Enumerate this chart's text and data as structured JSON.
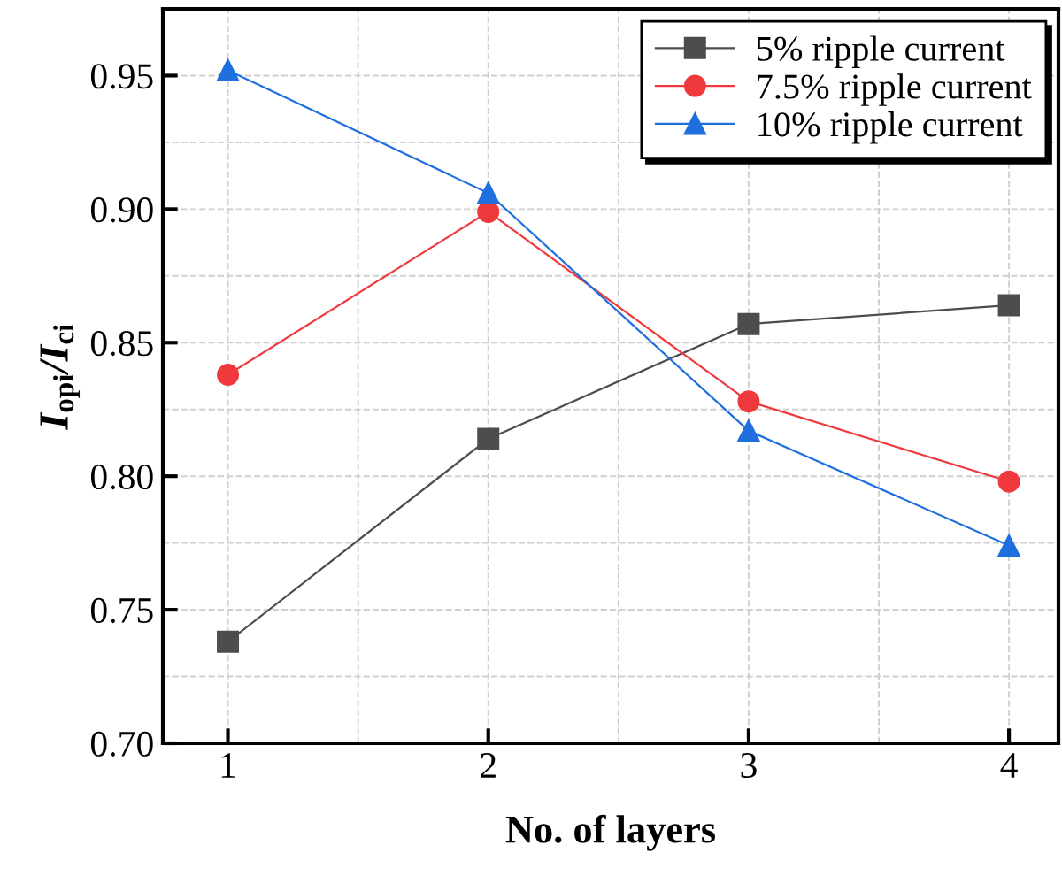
{
  "chart_data": {
    "type": "line",
    "xlabel": "No. of layers",
    "ylabel": "I$_{opi}$/I$_{ci}$",
    "x": [
      1,
      2,
      3,
      4
    ],
    "series": [
      {
        "name": "5% ripple current",
        "color": "#4d4d4d",
        "marker": "square",
        "values": [
          0.738,
          0.814,
          0.857,
          0.864
        ]
      },
      {
        "name": "7.5% ripple current",
        "color": "#f0393c",
        "marker": "circle",
        "values": [
          0.838,
          0.899,
          0.828,
          0.798
        ]
      },
      {
        "name": "10% ripple current",
        "color": "#1f6fde",
        "marker": "triangle",
        "values": [
          0.952,
          0.906,
          0.817,
          0.774
        ]
      }
    ],
    "xlim": [
      0.75,
      4.19
    ],
    "xticks": [
      1,
      2,
      3,
      4
    ],
    "ylim": [
      0.7,
      0.975
    ],
    "yticks": [
      {
        "value": 0.7,
        "label": "0.70"
      },
      {
        "value": 0.75,
        "label": "0.75"
      },
      {
        "value": 0.8,
        "label": "0.80"
      },
      {
        "value": 0.85,
        "label": "0.85"
      },
      {
        "value": 0.9,
        "label": "0.90"
      },
      {
        "value": 0.95,
        "label": "0.95"
      }
    ],
    "grid": true,
    "legend": "top right",
    "line_style": "solid"
  }
}
